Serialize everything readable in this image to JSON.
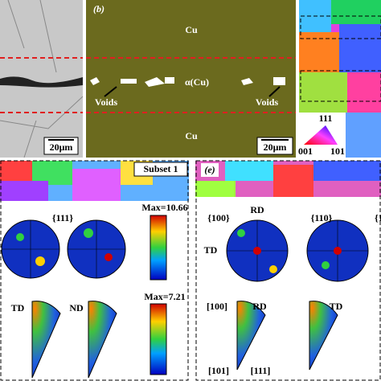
{
  "panels": {
    "a": {
      "scale_bar": "20μm"
    },
    "b": {
      "label": "(b)",
      "top_phase": "Cu",
      "middle_phase": "α(Cu)",
      "voids_left": "Voids",
      "voids_right": "Voids",
      "bottom_phase": "Cu",
      "scale_bar": "20μm"
    },
    "c": {
      "ipf_top": "111",
      "ipf_left": "001",
      "ipf_right": "101"
    },
    "d": {
      "subset": "Subset 1",
      "pole_figure": "{111}",
      "max_top": "Max=10.66",
      "max_bottom": "Max=7.21",
      "ipf_left": "TD",
      "ipf_right": "ND"
    },
    "e": {
      "label": "(e)",
      "rd_top": "RD",
      "pf_left": "{100}",
      "pf_mid": "{110}",
      "pf_right": "{1",
      "td_side": "TD",
      "dir_100": "[100]",
      "ipf_rd": "RD",
      "ipf_td": "TD",
      "dir_101": "[101]",
      "dir_111": "[111]"
    }
  }
}
